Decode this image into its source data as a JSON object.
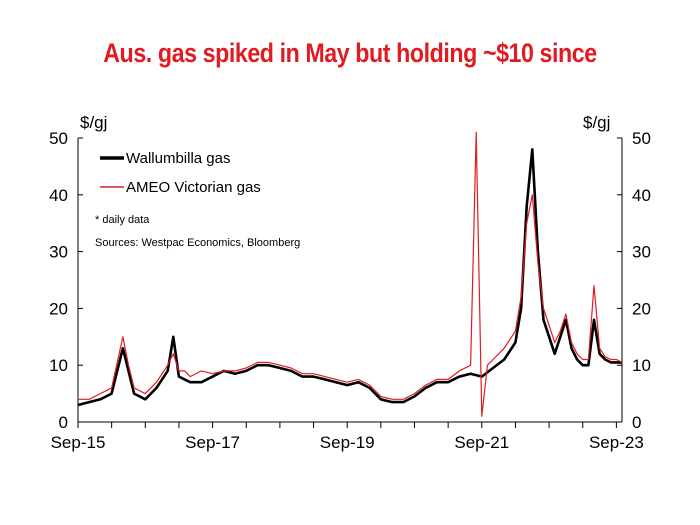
{
  "chart_data": {
    "type": "line",
    "title": "Aus. gas spiked in May but holding ~$10 since",
    "ylabel_left": "$/gj",
    "ylabel_right": "$/gj",
    "ylim": [
      0,
      50
    ],
    "y_ticks": [
      "0",
      "10",
      "20",
      "30",
      "40",
      "50"
    ],
    "x_tick_labels": [
      "Sep-15",
      "Sep-17",
      "Sep-19",
      "Sep-21",
      "Sep-23"
    ],
    "x_range": [
      "2015-09",
      "2023-10"
    ],
    "grid": false,
    "legend_position": "top-left",
    "notes": [
      "* daily data",
      "Sources: Westpac Economics, Bloomberg"
    ],
    "series": [
      {
        "name": "Wallumbilla gas",
        "color": "#000000",
        "x": [
          "2015-09",
          "2015-11",
          "2016-01",
          "2016-03",
          "2016-05",
          "2016-06",
          "2016-07",
          "2016-09",
          "2016-11",
          "2017-01",
          "2017-02",
          "2017-03",
          "2017-04",
          "2017-05",
          "2017-07",
          "2017-09",
          "2017-11",
          "2018-01",
          "2018-03",
          "2018-05",
          "2018-07",
          "2018-09",
          "2018-11",
          "2019-01",
          "2019-03",
          "2019-05",
          "2019-07",
          "2019-09",
          "2019-11",
          "2020-01",
          "2020-03",
          "2020-05",
          "2020-07",
          "2020-09",
          "2020-11",
          "2021-01",
          "2021-03",
          "2021-05",
          "2021-07",
          "2021-09",
          "2021-11",
          "2022-01",
          "2022-03",
          "2022-04",
          "2022-05",
          "2022-06",
          "2022-07",
          "2022-08",
          "2022-09",
          "2022-10",
          "2022-11",
          "2022-12",
          "2023-01",
          "2023-02",
          "2023-03",
          "2023-04",
          "2023-05",
          "2023-06",
          "2023-07",
          "2023-08",
          "2023-09",
          "2023-10"
        ],
        "values": [
          3,
          3.5,
          4,
          5,
          13,
          9,
          5,
          4,
          6,
          9,
          15,
          8,
          7.5,
          7,
          7,
          8,
          9,
          8.5,
          9,
          10,
          10,
          9.5,
          9,
          8,
          8,
          7.5,
          7,
          6.5,
          7,
          6,
          4,
          3.5,
          3.5,
          4.5,
          6,
          7,
          7,
          8,
          8.5,
          8,
          9.5,
          11,
          14,
          20,
          38,
          48,
          30,
          18,
          15,
          12,
          15,
          18,
          13,
          11,
          10,
          10,
          18,
          12,
          11,
          10.5,
          10.5,
          10.5
        ]
      },
      {
        "name": "AMEO Victorian gas",
        "color": "#e01b22",
        "x": [
          "2015-09",
          "2015-11",
          "2016-01",
          "2016-03",
          "2016-05",
          "2016-06",
          "2016-07",
          "2016-09",
          "2016-11",
          "2017-01",
          "2017-02",
          "2017-03",
          "2017-04",
          "2017-05",
          "2017-07",
          "2017-09",
          "2017-11",
          "2018-01",
          "2018-03",
          "2018-05",
          "2018-07",
          "2018-09",
          "2018-11",
          "2019-01",
          "2019-03",
          "2019-05",
          "2019-07",
          "2019-09",
          "2019-11",
          "2020-01",
          "2020-03",
          "2020-05",
          "2020-07",
          "2020-09",
          "2020-11",
          "2021-01",
          "2021-03",
          "2021-05",
          "2021-07",
          "2021-08",
          "2021-09",
          "2021-10",
          "2021-11",
          "2022-01",
          "2022-03",
          "2022-04",
          "2022-05",
          "2022-06",
          "2022-07",
          "2022-08",
          "2022-09",
          "2022-10",
          "2022-11",
          "2022-12",
          "2023-01",
          "2023-02",
          "2023-03",
          "2023-04",
          "2023-05",
          "2023-06",
          "2023-07",
          "2023-08",
          "2023-09",
          "2023-10"
        ],
        "values": [
          4,
          4,
          5,
          6,
          15,
          10,
          6,
          5,
          7,
          10,
          12,
          9,
          9,
          8,
          9,
          8.5,
          9,
          9,
          9.5,
          10.5,
          10.5,
          10,
          9.5,
          8.5,
          8.5,
          8,
          7.5,
          7,
          7.5,
          6.5,
          4.5,
          4,
          4,
          5,
          6.5,
          7.5,
          7.5,
          9,
          10,
          51,
          1,
          10,
          11,
          13,
          16,
          22,
          35,
          40,
          28,
          20,
          17,
          14,
          16,
          19,
          14,
          12,
          11,
          11,
          24,
          13,
          11.5,
          11,
          11,
          10.5
        ]
      }
    ]
  }
}
